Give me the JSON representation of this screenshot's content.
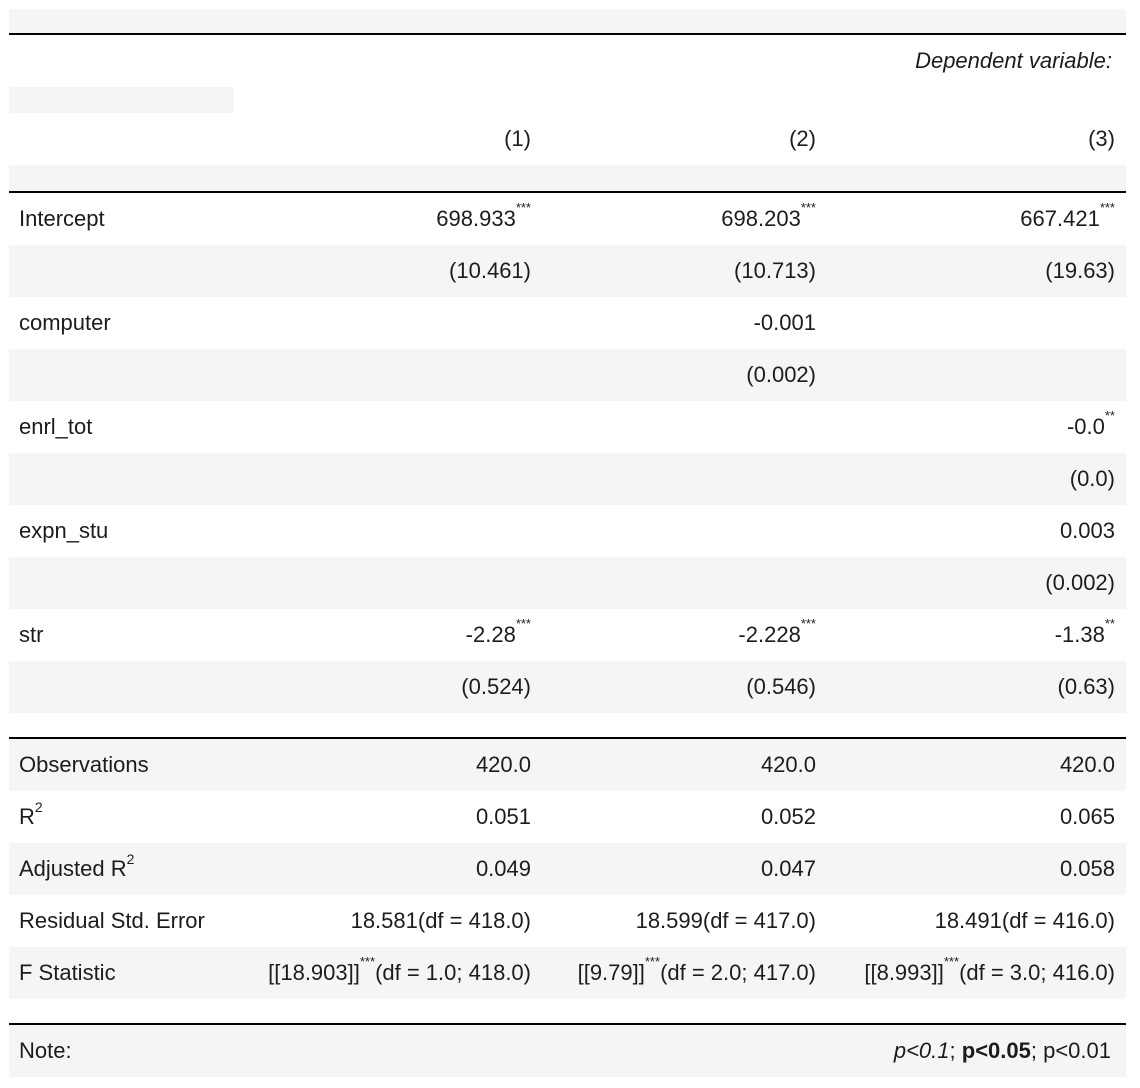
{
  "header": {
    "dependent_variable_label": "Dependent variable:"
  },
  "columns": [
    "(1)",
    "(2)",
    "(3)"
  ],
  "coefficients": [
    {
      "name": "Intercept",
      "est": [
        {
          "v": "698.933",
          "s": "***"
        },
        {
          "v": "698.203",
          "s": "***"
        },
        {
          "v": "667.421",
          "s": "***"
        }
      ],
      "se": [
        "(10.461)",
        "(10.713)",
        "(19.63)"
      ]
    },
    {
      "name": "computer",
      "est": [
        {
          "v": "",
          "s": ""
        },
        {
          "v": "-0.001",
          "s": ""
        },
        {
          "v": "",
          "s": ""
        }
      ],
      "se": [
        "",
        "(0.002)",
        ""
      ]
    },
    {
      "name": "enrl_tot",
      "est": [
        {
          "v": "",
          "s": ""
        },
        {
          "v": "",
          "s": ""
        },
        {
          "v": "-0.0",
          "s": "**"
        }
      ],
      "se": [
        "",
        "",
        "(0.0)"
      ]
    },
    {
      "name": "expn_stu",
      "est": [
        {
          "v": "",
          "s": ""
        },
        {
          "v": "",
          "s": ""
        },
        {
          "v": "0.003",
          "s": ""
        }
      ],
      "se": [
        "",
        "",
        "(0.002)"
      ]
    },
    {
      "name": "str",
      "est": [
        {
          "v": "-2.28",
          "s": "***"
        },
        {
          "v": "-2.228",
          "s": "***"
        },
        {
          "v": "-1.38",
          "s": "**"
        }
      ],
      "se": [
        "(0.524)",
        "(0.546)",
        "(0.63)"
      ]
    }
  ],
  "stats": {
    "observations": {
      "label": "Observations",
      "values": [
        "420.0",
        "420.0",
        "420.0"
      ]
    },
    "r2": {
      "label": "R",
      "sup": "2",
      "values": [
        "0.051",
        "0.052",
        "0.065"
      ]
    },
    "adj_r2": {
      "label": "Adjusted R",
      "sup": "2",
      "values": [
        "0.049",
        "0.047",
        "0.058"
      ]
    },
    "resid_se": {
      "label": "Residual Std. Error",
      "values": [
        "18.581(df = 418.0)",
        "18.599(df = 417.0)",
        "18.491(df = 416.0)"
      ]
    },
    "f_stat": {
      "label": "F Statistic",
      "values": [
        {
          "pre": "[[18.903]]",
          "stars": "***",
          "post": "(df = 1.0; 418.0)"
        },
        {
          "pre": "[[9.79]]",
          "stars": "***",
          "post": "(df = 2.0; 417.0)"
        },
        {
          "pre": "[[8.993]]",
          "stars": "***",
          "post": "(df = 3.0; 416.0)"
        }
      ]
    }
  },
  "note": {
    "label": "Note:",
    "p1": "p<0.1",
    "sep1": "; ",
    "p2": "p<0.05",
    "sep2": "; ",
    "p3": "p<0.01"
  }
}
